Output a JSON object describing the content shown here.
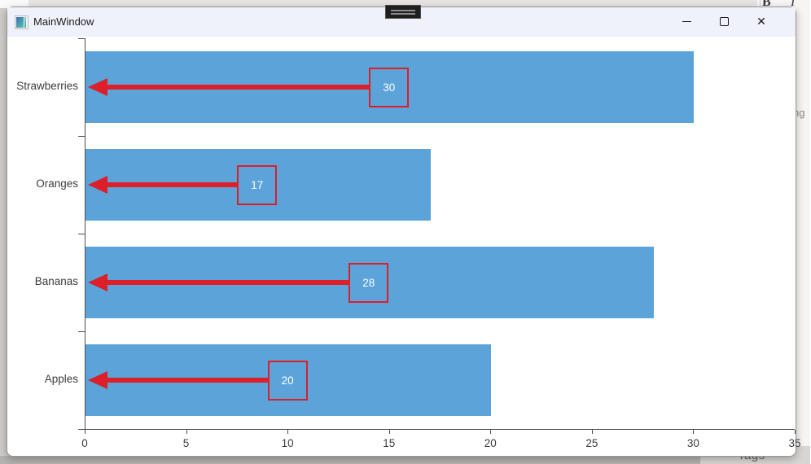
{
  "desktop": {
    "behind_app": {
      "bold_button": "B",
      "italic_button": "I",
      "clipped_text_right": "ng",
      "clipped_text_bottom": "Tags"
    }
  },
  "window": {
    "title": "MainWindow",
    "controls": {
      "minimize": "",
      "maximize": "",
      "close": "✕"
    }
  },
  "chart_data": {
    "type": "bar",
    "orientation": "horizontal",
    "title": "",
    "xlabel": "",
    "ylabel": "",
    "categories": [
      "Strawberries",
      "Oranges",
      "Bananas",
      "Apples"
    ],
    "values": [
      30,
      17,
      28,
      20
    ],
    "xlim": [
      0,
      35
    ],
    "xticks": [
      0,
      5,
      10,
      15,
      20,
      25,
      30,
      35
    ],
    "grid": false,
    "legend": "none",
    "bar_color": "#5ba3d8",
    "annotation_color": "#dc1f28",
    "annotations": [
      {
        "category": "Strawberries",
        "label": "30",
        "arrow": "points-left-to-axis"
      },
      {
        "category": "Oranges",
        "label": "17",
        "arrow": "points-left-to-axis"
      },
      {
        "category": "Bananas",
        "label": "28",
        "arrow": "points-left-to-axis"
      },
      {
        "category": "Apples",
        "label": "20",
        "arrow": "points-left-to-axis"
      }
    ]
  }
}
